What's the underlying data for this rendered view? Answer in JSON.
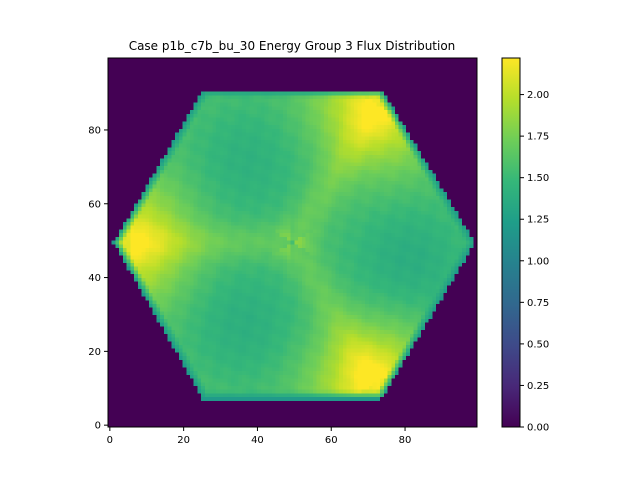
{
  "chart_data": {
    "type": "heatmap",
    "title": "Case p1b_c7b_bu_30 Energy Group 3 Flux Distribution",
    "xlabel": "",
    "ylabel": "",
    "xlim": [
      0,
      99
    ],
    "ylim": [
      0,
      99
    ],
    "x_ticks": [
      0,
      20,
      40,
      60,
      80
    ],
    "y_ticks": [
      0,
      20,
      40,
      60,
      80
    ],
    "colormap": "viridis",
    "colorbar": {
      "vmin": 0.0,
      "vmax": 2.22,
      "ticks": [
        "0.00",
        "0.25",
        "0.50",
        "0.75",
        "1.00",
        "1.25",
        "1.50",
        "1.75",
        "2.00"
      ]
    },
    "grid": false,
    "shape": "hexagon",
    "hexagon_vertices": [
      [
        25,
        8
      ],
      [
        73,
        8
      ],
      [
        98,
        50
      ],
      [
        73,
        91
      ],
      [
        25,
        91
      ],
      [
        1,
        50
      ]
    ],
    "center": [
      49,
      50
    ],
    "background_value": 0.0,
    "edge_value": 1.2,
    "base_value": 1.62,
    "hotspots": [
      {
        "x": 5,
        "y": 50,
        "value": 2.15
      },
      {
        "x": 72,
        "y": 87,
        "value": 2.18
      },
      {
        "x": 71,
        "y": 12,
        "value": 2.2
      }
    ],
    "cold_regions": [
      {
        "x": 37,
        "y": 72,
        "value": 1.42
      },
      {
        "x": 80,
        "y": 45,
        "value": 1.38
      },
      {
        "x": 36,
        "y": 28,
        "value": 1.4
      }
    ]
  }
}
